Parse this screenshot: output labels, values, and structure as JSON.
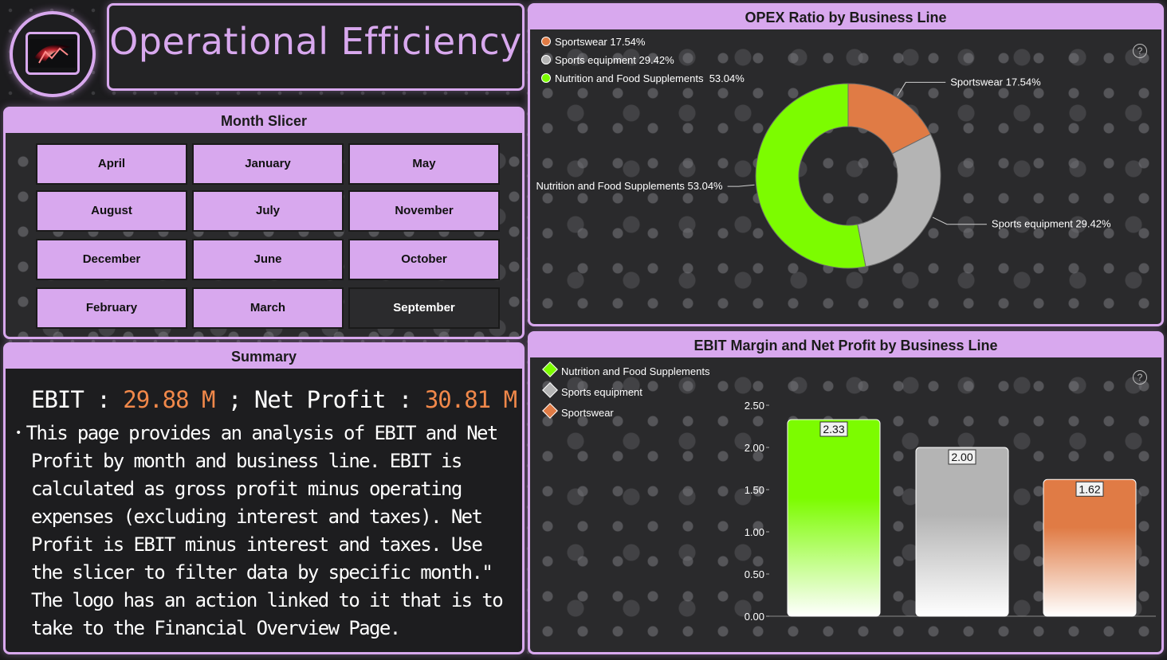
{
  "logo": {
    "name": "logo-icon"
  },
  "header": {
    "title": "Operational Efficiency"
  },
  "slicer": {
    "title": "Month Slicer",
    "months": [
      "April",
      "January",
      "May",
      "August",
      "July",
      "November",
      "December",
      "June",
      "October",
      "February",
      "March",
      "September"
    ],
    "selected": "September"
  },
  "summary": {
    "title": "Summary",
    "ebit_label": "EBIT",
    "ebit_value": "29.88 M",
    "net_label": "Net Profit",
    "net_value": "30.81 M",
    "text": "This page provides an analysis of EBIT and Net Profit by month and business line. EBIT is calculated as gross profit minus operating expenses (excluding interest and taxes). Net Profit is EBIT minus interest and taxes. Use the slicer to filter data by specific month.\" The logo has an action linked to it that is to take to the Financial Overview Page."
  },
  "help_icon": "?",
  "colors": {
    "accent": "#d8a8ee",
    "green": "#7cfc00",
    "gray": "#b4b4b4",
    "orange": "#e07b45",
    "value_orange": "#f0884a"
  },
  "chart_data": [
    {
      "type": "pie",
      "title": "OPEX Ratio by Business Line",
      "donut": true,
      "legend_position": "top-left",
      "slices": [
        {
          "label": "Sportswear",
          "value": 17.54,
          "display": "17.54%",
          "color": "#e07b45"
        },
        {
          "label": "Sports equipment",
          "value": 29.42,
          "display": "29.42%",
          "color": "#b4b4b4"
        },
        {
          "label": "Nutrition and Food Supplements",
          "value": 53.04,
          "display": "53.04%",
          "color": "#7cfc00"
        }
      ]
    },
    {
      "type": "bar",
      "title": "EBIT Margin and Net Profit by Business Line",
      "legend_position": "top-left",
      "categories": [
        "Nutrition and Food Supplements",
        "Sports equipment",
        "Sportswear"
      ],
      "values": [
        2.33,
        2.0,
        1.62
      ],
      "value_labels": [
        "2.33",
        "2.00",
        "1.62"
      ],
      "colors": [
        "#7cfc00",
        "#b4b4b4",
        "#e07b45"
      ],
      "ylim": [
        0,
        2.5
      ],
      "yticks": [
        "0.00",
        "0.50",
        "1.00",
        "1.50",
        "2.00",
        "2.50"
      ],
      "grid": false
    }
  ]
}
